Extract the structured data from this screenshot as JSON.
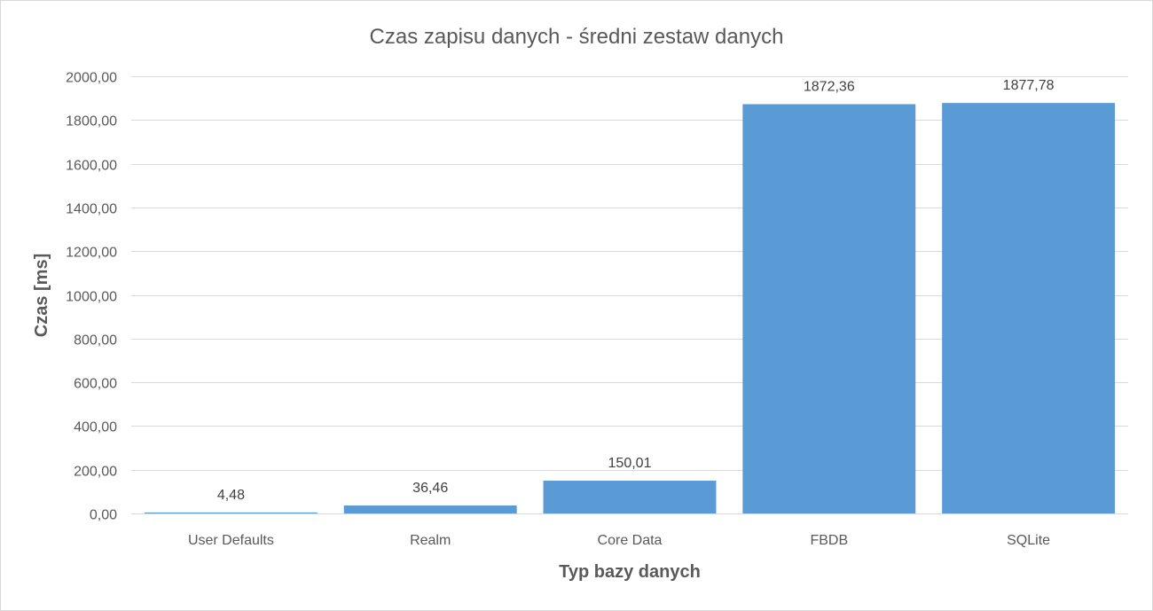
{
  "chart_data": {
    "type": "bar",
    "title": "Czas zapisu danych - średni zestaw danych",
    "xlabel": "Typ bazy danych",
    "ylabel": "Czas [ms]",
    "categories": [
      "User Defaults",
      "Realm",
      "Core Data",
      "FBDB",
      "SQLite"
    ],
    "values": [
      4.48,
      36.46,
      150.01,
      1872.36,
      1877.78
    ],
    "value_labels": [
      "4,48",
      "36,46",
      "150,01",
      "1872,36",
      "1877,78"
    ],
    "ylim": [
      0,
      2000
    ],
    "yticks": [
      0,
      200,
      400,
      600,
      800,
      1000,
      1200,
      1400,
      1600,
      1800,
      2000
    ],
    "ytick_labels": [
      "0,00",
      "200,00",
      "400,00",
      "600,00",
      "800,00",
      "1000,00",
      "1200,00",
      "1400,00",
      "1600,00",
      "1800,00",
      "2000,00"
    ],
    "grid": true,
    "legend": false,
    "bar_color": "#5b9bd5"
  }
}
